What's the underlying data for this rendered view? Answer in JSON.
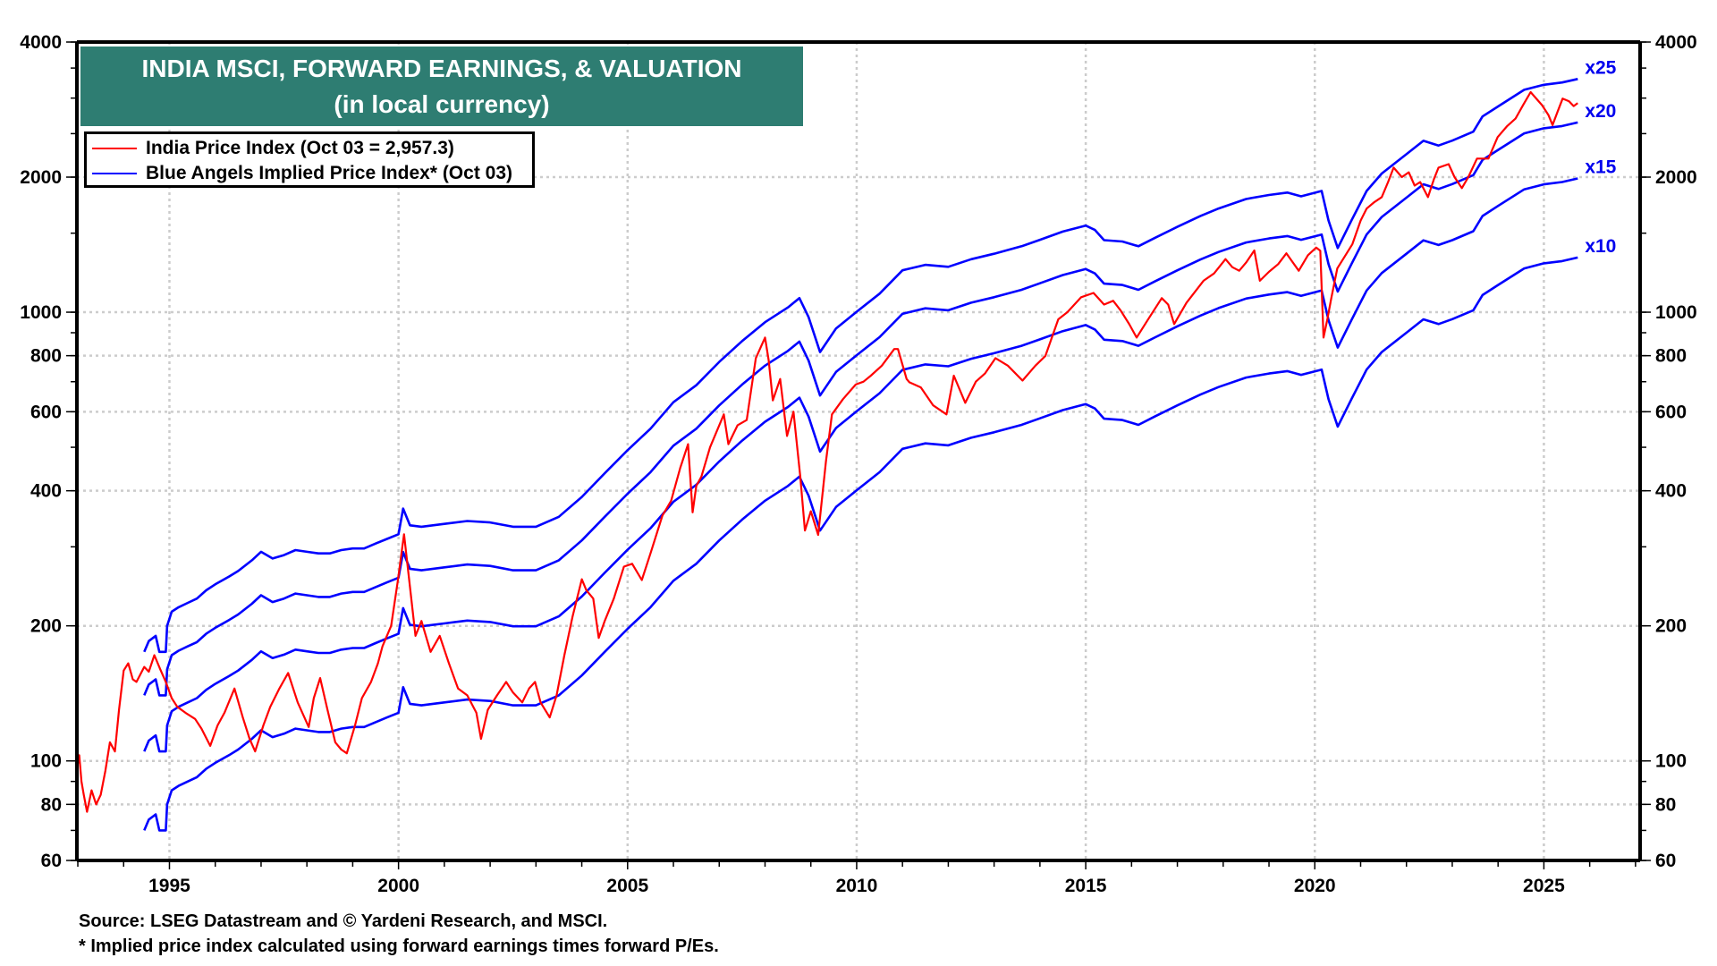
{
  "chart_data": {
    "type": "line",
    "title": "INDIA MSCI, FORWARD EARNINGS, & VALUATION",
    "subtitle": "(in local currency)",
    "xlabel": "",
    "ylabel": "",
    "yscale": "log",
    "xlim": [
      1992.98,
      2027.1
    ],
    "ylim": [
      60,
      4000
    ],
    "grid": true,
    "legend_position": "top-left",
    "x_ticks": [
      1995,
      2000,
      2005,
      2010,
      2015,
      2020,
      2025
    ],
    "x_tick_labels": [
      "1995",
      "2000",
      "2005",
      "2010",
      "2015",
      "2020",
      "2025"
    ],
    "y_ticks": [
      60,
      80,
      100,
      200,
      400,
      600,
      800,
      1000,
      2000,
      4000
    ],
    "y_tick_labels": [
      "60",
      "80",
      "100",
      "200",
      "400",
      "600",
      "800",
      "1000",
      "2000",
      "4000"
    ],
    "legend": [
      {
        "label": "India Price Index (Oct 03 = 2,957.3)",
        "color": "#ff0000"
      },
      {
        "label": "Blue Angels Implied Price Index* (Oct 03)",
        "color": "#0000ff"
      }
    ],
    "band_multiples": [
      10,
      15,
      20,
      25
    ],
    "band_labels": [
      "x10",
      "x15",
      "x20",
      "x25"
    ],
    "series": [
      {
        "name": "India Price Index",
        "color": "#ff0000",
        "points": [
          [
            1992.98,
            96
          ],
          [
            1993.03,
            103
          ],
          [
            1993.08,
            90
          ],
          [
            1993.13,
            84
          ],
          [
            1993.2,
            77
          ],
          [
            1993.3,
            86
          ],
          [
            1993.4,
            80
          ],
          [
            1993.5,
            84
          ],
          [
            1993.6,
            95
          ],
          [
            1993.7,
            110
          ],
          [
            1993.81,
            105
          ],
          [
            1993.9,
            130
          ],
          [
            1994.0,
            159
          ],
          [
            1994.1,
            165
          ],
          [
            1994.2,
            152
          ],
          [
            1994.28,
            150
          ],
          [
            1994.45,
            162
          ],
          [
            1994.55,
            158
          ],
          [
            1994.67,
            172
          ],
          [
            1994.8,
            160
          ],
          [
            1994.92,
            150
          ],
          [
            1995.05,
            138
          ],
          [
            1995.17,
            132
          ],
          [
            1995.35,
            128
          ],
          [
            1995.56,
            124
          ],
          [
            1995.7,
            118
          ],
          [
            1995.89,
            108
          ],
          [
            1996.05,
            120
          ],
          [
            1996.2,
            128
          ],
          [
            1996.42,
            145
          ],
          [
            1996.6,
            125
          ],
          [
            1996.75,
            112
          ],
          [
            1996.87,
            105
          ],
          [
            1997.05,
            120
          ],
          [
            1997.2,
            132
          ],
          [
            1997.4,
            145
          ],
          [
            1997.59,
            157
          ],
          [
            1997.8,
            135
          ],
          [
            1998.04,
            119
          ],
          [
            1998.15,
            138
          ],
          [
            1998.29,
            153
          ],
          [
            1998.45,
            130
          ],
          [
            1998.62,
            110
          ],
          [
            1998.75,
            106
          ],
          [
            1998.87,
            104
          ],
          [
            1999.05,
            120
          ],
          [
            1999.2,
            138
          ],
          [
            1999.4,
            150
          ],
          [
            1999.55,
            165
          ],
          [
            1999.65,
            180
          ],
          [
            1999.84,
            200
          ],
          [
            1999.98,
            250
          ],
          [
            2000.12,
            320
          ],
          [
            2000.22,
            260
          ],
          [
            2000.37,
            190
          ],
          [
            2000.5,
            205
          ],
          [
            2000.7,
            175
          ],
          [
            2000.9,
            190
          ],
          [
            2001.1,
            165
          ],
          [
            2001.3,
            145
          ],
          [
            2001.5,
            140
          ],
          [
            2001.7,
            128
          ],
          [
            2001.8,
            112
          ],
          [
            2001.95,
            130
          ],
          [
            2002.15,
            140
          ],
          [
            2002.35,
            150
          ],
          [
            2002.5,
            142
          ],
          [
            2002.7,
            135
          ],
          [
            2002.85,
            145
          ],
          [
            2002.98,
            150
          ],
          [
            2003.1,
            135
          ],
          [
            2003.3,
            125
          ],
          [
            2003.45,
            140
          ],
          [
            2003.62,
            172
          ],
          [
            2003.8,
            210
          ],
          [
            2004.0,
            254
          ],
          [
            2004.1,
            240
          ],
          [
            2004.25,
            230
          ],
          [
            2004.37,
            188
          ],
          [
            2004.5,
            205
          ],
          [
            2004.7,
            230
          ],
          [
            2004.92,
            271
          ],
          [
            2005.1,
            275
          ],
          [
            2005.31,
            253
          ],
          [
            2005.5,
            290
          ],
          [
            2005.76,
            352
          ],
          [
            2005.95,
            380
          ],
          [
            2006.15,
            450
          ],
          [
            2006.32,
            508
          ],
          [
            2006.42,
            358
          ],
          [
            2006.5,
            410
          ],
          [
            2006.61,
            430
          ],
          [
            2006.8,
            500
          ],
          [
            2007.1,
            592
          ],
          [
            2007.2,
            508
          ],
          [
            2007.4,
            560
          ],
          [
            2007.6,
            575
          ],
          [
            2007.8,
            790
          ],
          [
            2008.0,
            878
          ],
          [
            2008.08,
            780
          ],
          [
            2008.17,
            636
          ],
          [
            2008.33,
            710
          ],
          [
            2008.48,
            530
          ],
          [
            2008.62,
            600
          ],
          [
            2008.77,
            430
          ],
          [
            2008.87,
            326
          ],
          [
            2009.0,
            360
          ],
          [
            2009.16,
            319
          ],
          [
            2009.33,
            465
          ],
          [
            2009.46,
            592
          ],
          [
            2009.7,
            640
          ],
          [
            2009.98,
            690
          ],
          [
            2010.15,
            700
          ],
          [
            2010.31,
            722
          ],
          [
            2010.55,
            760
          ],
          [
            2010.82,
            828
          ],
          [
            2010.9,
            828
          ],
          [
            2011.09,
            710
          ],
          [
            2011.15,
            698
          ],
          [
            2011.4,
            680
          ],
          [
            2011.67,
            620
          ],
          [
            2011.96,
            592
          ],
          [
            2012.12,
            722
          ],
          [
            2012.37,
            628
          ],
          [
            2012.6,
            700
          ],
          [
            2012.8,
            730
          ],
          [
            2013.03,
            790
          ],
          [
            2013.3,
            760
          ],
          [
            2013.62,
            704
          ],
          [
            2013.9,
            760
          ],
          [
            2014.12,
            799
          ],
          [
            2014.4,
            964
          ],
          [
            2014.6,
            1000
          ],
          [
            2014.9,
            1080
          ],
          [
            2015.17,
            1104
          ],
          [
            2015.4,
            1040
          ],
          [
            2015.6,
            1060
          ],
          [
            2015.76,
            1010
          ],
          [
            2015.95,
            940
          ],
          [
            2016.11,
            878
          ],
          [
            2016.35,
            960
          ],
          [
            2016.66,
            1075
          ],
          [
            2016.8,
            1040
          ],
          [
            2016.93,
            941
          ],
          [
            2017.2,
            1050
          ],
          [
            2017.57,
            1175
          ],
          [
            2017.8,
            1220
          ],
          [
            2018.05,
            1313
          ],
          [
            2018.2,
            1260
          ],
          [
            2018.35,
            1237
          ],
          [
            2018.5,
            1290
          ],
          [
            2018.68,
            1373
          ],
          [
            2018.8,
            1175
          ],
          [
            2019.0,
            1230
          ],
          [
            2019.2,
            1280
          ],
          [
            2019.38,
            1353
          ],
          [
            2019.5,
            1300
          ],
          [
            2019.65,
            1237
          ],
          [
            2019.85,
            1340
          ],
          [
            2020.03,
            1393
          ],
          [
            2020.12,
            1370
          ],
          [
            2020.19,
            878
          ],
          [
            2020.27,
            960
          ],
          [
            2020.36,
            1075
          ],
          [
            2020.49,
            1252
          ],
          [
            2020.65,
            1330
          ],
          [
            2020.82,
            1418
          ],
          [
            2021.0,
            1600
          ],
          [
            2021.13,
            1702
          ],
          [
            2021.3,
            1760
          ],
          [
            2021.46,
            1805
          ],
          [
            2021.6,
            1950
          ],
          [
            2021.72,
            2100
          ],
          [
            2021.9,
            2000
          ],
          [
            2022.05,
            2050
          ],
          [
            2022.18,
            1915
          ],
          [
            2022.3,
            1950
          ],
          [
            2022.47,
            1805
          ],
          [
            2022.6,
            1980
          ],
          [
            2022.7,
            2100
          ],
          [
            2022.92,
            2138
          ],
          [
            2023.05,
            2000
          ],
          [
            2023.21,
            1890
          ],
          [
            2023.35,
            2000
          ],
          [
            2023.54,
            2200
          ],
          [
            2023.79,
            2200
          ],
          [
            2023.99,
            2456
          ],
          [
            2024.2,
            2600
          ],
          [
            2024.38,
            2700
          ],
          [
            2024.55,
            2900
          ],
          [
            2024.71,
            3094
          ],
          [
            2024.85,
            2980
          ],
          [
            2024.96,
            2893
          ],
          [
            2025.1,
            2750
          ],
          [
            2025.19,
            2613
          ],
          [
            2025.3,
            2800
          ],
          [
            2025.41,
            2993
          ],
          [
            2025.55,
            2950
          ],
          [
            2025.65,
            2880
          ],
          [
            2025.74,
            2925
          ]
        ]
      },
      {
        "name": "Blue Angels Implied Price Index x10",
        "color": "#0000ff",
        "multiple": 10,
        "label": "x10",
        "points": [
          [
            1994.45,
            70
          ],
          [
            1994.55,
            74
          ],
          [
            1994.7,
            76
          ],
          [
            1994.78,
            70
          ],
          [
            1994.92,
            70
          ],
          [
            1994.95,
            80
          ],
          [
            1995.05,
            86
          ],
          [
            1995.2,
            88
          ],
          [
            1995.4,
            90
          ],
          [
            1995.6,
            92
          ],
          [
            1995.8,
            96
          ],
          [
            1996.0,
            99
          ],
          [
            1996.3,
            103
          ],
          [
            1996.5,
            106
          ],
          [
            1996.8,
            112
          ],
          [
            1997.0,
            117
          ],
          [
            1997.25,
            113
          ],
          [
            1997.5,
            115
          ],
          [
            1997.75,
            118
          ],
          [
            1998.0,
            117
          ],
          [
            1998.25,
            116
          ],
          [
            1998.5,
            116
          ],
          [
            1998.75,
            118
          ],
          [
            1999.0,
            119
          ],
          [
            1999.25,
            119
          ],
          [
            1999.5,
            122
          ],
          [
            1999.75,
            125
          ],
          [
            2000.0,
            128
          ],
          [
            2000.1,
            146
          ],
          [
            2000.25,
            134
          ],
          [
            2000.5,
            133
          ],
          [
            2001.0,
            135
          ],
          [
            2001.5,
            137
          ],
          [
            2002.0,
            136
          ],
          [
            2002.5,
            133
          ],
          [
            2003.0,
            133
          ],
          [
            2003.5,
            140
          ],
          [
            2004.0,
            155
          ],
          [
            2004.5,
            175
          ],
          [
            2005.0,
            197
          ],
          [
            2005.5,
            220
          ],
          [
            2006.0,
            252
          ],
          [
            2006.5,
            275
          ],
          [
            2007.0,
            310
          ],
          [
            2007.5,
            345
          ],
          [
            2008.0,
            380
          ],
          [
            2008.5,
            410
          ],
          [
            2008.75,
            430
          ],
          [
            2008.95,
            390
          ],
          [
            2009.2,
            326
          ],
          [
            2009.55,
            368
          ],
          [
            2010.0,
            401
          ],
          [
            2010.5,
            440
          ],
          [
            2011.0,
            496
          ],
          [
            2011.5,
            510
          ],
          [
            2012.0,
            505
          ],
          [
            2012.5,
            525
          ],
          [
            2013.0,
            540
          ],
          [
            2013.6,
            561
          ],
          [
            2014.0,
            580
          ],
          [
            2014.5,
            605
          ],
          [
            2015.0,
            624
          ],
          [
            2015.2,
            610
          ],
          [
            2015.4,
            579
          ],
          [
            2015.8,
            575
          ],
          [
            2016.15,
            561
          ],
          [
            2016.5,
            585
          ],
          [
            2017.0,
            620
          ],
          [
            2017.5,
            655
          ],
          [
            2017.9,
            681
          ],
          [
            2018.5,
            715
          ],
          [
            2019.0,
            730
          ],
          [
            2019.4,
            739
          ],
          [
            2019.7,
            725
          ],
          [
            2020.15,
            745
          ],
          [
            2020.3,
            640
          ],
          [
            2020.5,
            556
          ],
          [
            2020.8,
            640
          ],
          [
            2021.13,
            745
          ],
          [
            2021.46,
            815
          ],
          [
            2022.0,
            900
          ],
          [
            2022.37,
            964
          ],
          [
            2022.7,
            941
          ],
          [
            2023.0,
            965
          ],
          [
            2023.46,
            1010
          ],
          [
            2023.66,
            1092
          ],
          [
            2024.0,
            1150
          ],
          [
            2024.57,
            1252
          ],
          [
            2025.0,
            1285
          ],
          [
            2025.4,
            1300
          ],
          [
            2025.74,
            1324
          ]
        ]
      }
    ]
  },
  "title": {
    "line1": "INDIA MSCI, FORWARD EARNINGS, & VALUATION",
    "line2": "(in local currency)"
  },
  "legend": {
    "red_label": "India Price Index (Oct 03 = 2,957.3)",
    "blue_label": "Blue Angels Implied Price Index* (Oct 03)"
  },
  "footer": {
    "source": "Source: LSEG Datastream and © Yardeni Research, and MSCI.",
    "note": "* Implied price index calculated using forward earnings times forward P/Es."
  }
}
